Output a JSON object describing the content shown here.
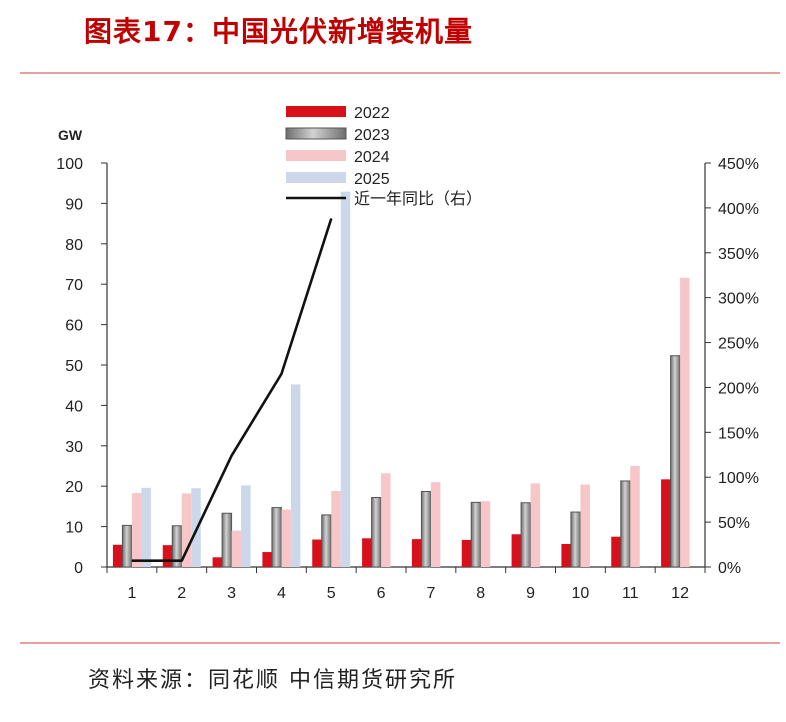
{
  "header": {
    "title": "图表17：中国光伏新增装机量"
  },
  "footer": {
    "source": "资料来源：同花顺  中信期货研究所"
  },
  "colors": {
    "title": "#c00000",
    "rule": "#e9a09a",
    "s2022": "#d7101c",
    "s2023": "#a6a6a6",
    "s2024": "#f6c6c9",
    "s2025": "#ccd7ea",
    "line": "#111111"
  },
  "chart_data": {
    "type": "bar",
    "title": "",
    "ylabel": "GW",
    "ylim": [
      0,
      100
    ],
    "y_ticks": [
      "0",
      "10",
      "20",
      "30",
      "40",
      "50",
      "60",
      "70",
      "80",
      "90",
      "100"
    ],
    "y2lim": [
      0,
      450
    ],
    "y2_ticks": [
      "0%",
      "50%",
      "100%",
      "150%",
      "200%",
      "250%",
      "300%",
      "350%",
      "400%",
      "450%"
    ],
    "categories": [
      "1",
      "2",
      "3",
      "4",
      "5",
      "6",
      "7",
      "8",
      "9",
      "10",
      "11",
      "12"
    ],
    "series": [
      {
        "name": "2022",
        "key": "s2022",
        "values": [
          5.5,
          5.4,
          2.4,
          3.7,
          6.8,
          7.1,
          6.9,
          6.7,
          8.1,
          5.7,
          7.5,
          21.7
        ]
      },
      {
        "name": "2023",
        "key": "s2023",
        "values": [
          10.3,
          10.2,
          13.3,
          14.7,
          12.9,
          17.2,
          18.7,
          16.0,
          15.9,
          13.6,
          21.3,
          52.3
        ]
      },
      {
        "name": "2024",
        "key": "s2024",
        "values": [
          18.3,
          18.2,
          9.0,
          14.2,
          18.8,
          23.2,
          21.0,
          16.3,
          20.7,
          20.4,
          25.0,
          71.6
        ]
      },
      {
        "name": "2025",
        "key": "s2025",
        "values": [
          19.6,
          19.5,
          20.2,
          45.2,
          92.9,
          null,
          null,
          null,
          null,
          null,
          null,
          null
        ]
      }
    ],
    "line_series": {
      "name": "近一年同比（右）",
      "axis": "right",
      "values": [
        7,
        7,
        124,
        215,
        388,
        null,
        null,
        null,
        null,
        null,
        null,
        null
      ]
    },
    "legend_position": "top-center",
    "grid": false
  }
}
